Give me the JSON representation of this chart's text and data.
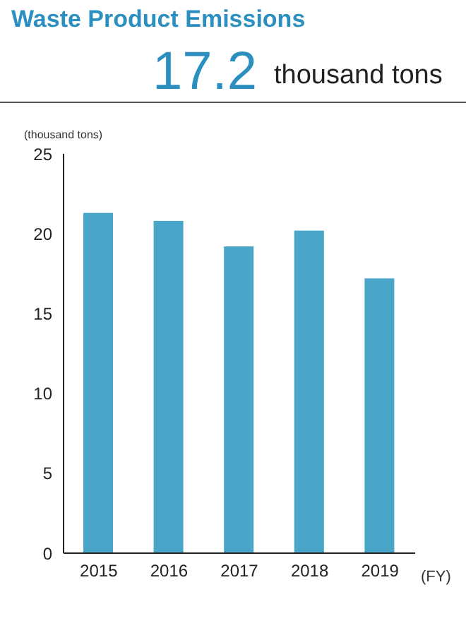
{
  "chart_data": {
    "type": "bar",
    "title": "Waste Product Emissions",
    "annotations": [
      "17.2",
      "thousand tons"
    ],
    "ylabel": "(thousand tons)",
    "xlabel": "(FY)",
    "categories": [
      "2015",
      "2016",
      "2017",
      "2018",
      "2019"
    ],
    "values": [
      21.3,
      20.8,
      19.2,
      20.2,
      17.2
    ],
    "color": "#4aa6c9",
    "ylim": [
      0,
      25
    ],
    "yticks": [
      0,
      5,
      10,
      15,
      20,
      25
    ],
    "grid": false,
    "legend": false
  }
}
